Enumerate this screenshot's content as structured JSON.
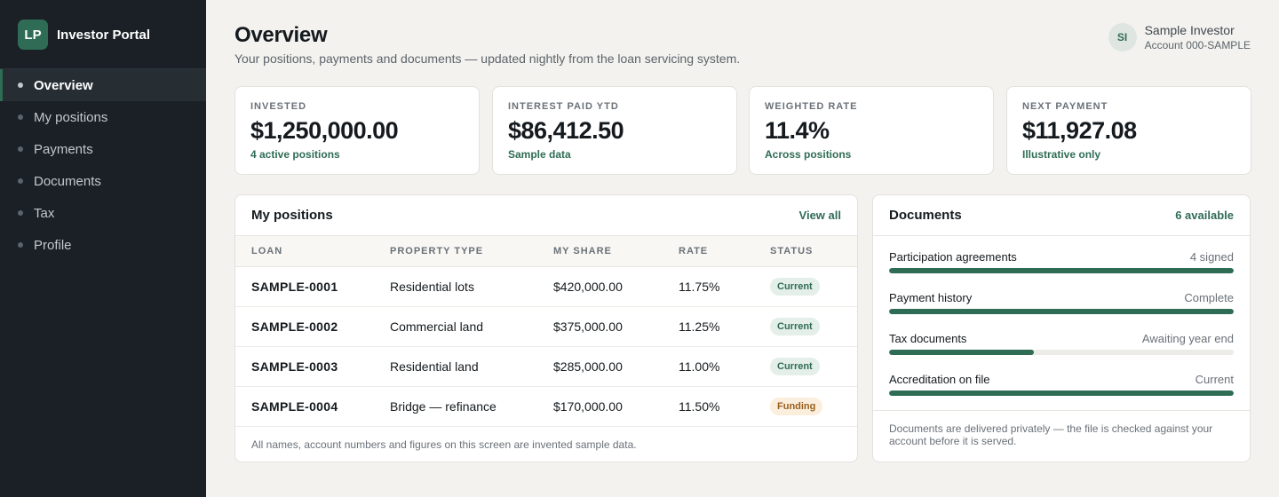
{
  "app": {
    "logo": "LP",
    "name": "Investor Portal"
  },
  "nav": {
    "items": [
      {
        "label": "Overview",
        "active": true
      },
      {
        "label": "My positions"
      },
      {
        "label": "Payments"
      },
      {
        "label": "Documents"
      },
      {
        "label": "Tax"
      },
      {
        "label": "Profile"
      }
    ]
  },
  "header": {
    "title": "Overview",
    "subtitle": "Your positions, payments and documents — updated nightly from the loan servicing system."
  },
  "user": {
    "initials": "SI",
    "name": "Sample Investor",
    "account": "Account 000-SAMPLE"
  },
  "stats": [
    {
      "label": "INVESTED",
      "value": "$1,250,000.00",
      "note": "4 active positions"
    },
    {
      "label": "INTEREST PAID YTD",
      "value": "$86,412.50",
      "note": "Sample data"
    },
    {
      "label": "WEIGHTED RATE",
      "value": "11.4%",
      "note": "Across positions"
    },
    {
      "label": "NEXT PAYMENT",
      "value": "$11,927.08",
      "note": "Illustrative only"
    }
  ],
  "positions": {
    "title": "My positions",
    "view_all": "View all",
    "columns": [
      "LOAN",
      "PROPERTY TYPE",
      "MY SHARE",
      "RATE",
      "STATUS"
    ],
    "rows": [
      [
        "SAMPLE-0001",
        "Residential lots",
        "$420,000.00",
        "11.75%",
        "Current"
      ],
      [
        "SAMPLE-0002",
        "Commercial land",
        "$375,000.00",
        "11.25%",
        "Current"
      ],
      [
        "SAMPLE-0003",
        "Residential land",
        "$285,000.00",
        "11.00%",
        "Current"
      ],
      [
        "SAMPLE-0004",
        "Bridge — refinance",
        "$170,000.00",
        "11.50%",
        "Funding"
      ]
    ],
    "footnote": "All names, account numbers and figures on this screen are invented sample data."
  },
  "documents": {
    "title": "Documents",
    "available": "6 available",
    "items": [
      {
        "name": "Participation agreements",
        "status": "4 signed",
        "progress": 1.0
      },
      {
        "name": "Payment history",
        "status": "Complete",
        "progress": 1.0
      },
      {
        "name": "Tax documents",
        "status": "Awaiting year end",
        "progress": 0.42
      },
      {
        "name": "Accreditation on file",
        "status": "Current",
        "progress": 1.0
      }
    ],
    "footnote": "Documents are delivered privately — the file is checked against your account before it is served."
  },
  "colors": {
    "accent": "#2f6c55",
    "sidebar": "#1a2026",
    "background": "#f3f2ef"
  }
}
